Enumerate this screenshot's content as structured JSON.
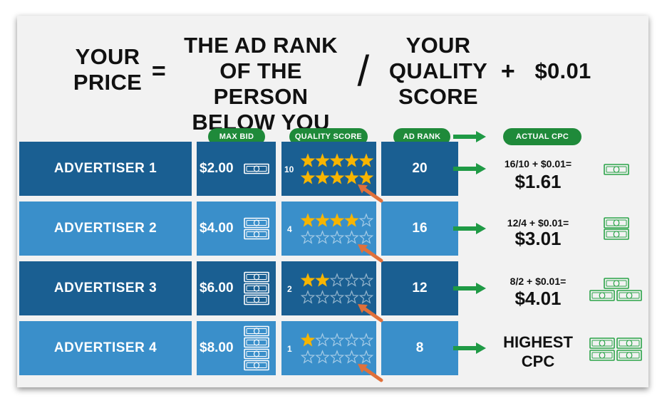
{
  "formula": {
    "price_line1": "YOUR",
    "price_line2": "PRICE",
    "equals": "=",
    "rank_line1": "THE AD RANK",
    "rank_line2": "OF THE PERSON",
    "rank_line3": "BELOW YOU",
    "divide": "/",
    "qs_line1": "YOUR",
    "qs_line2": "QUALITY",
    "qs_line3": "SCORE",
    "plus": "+",
    "cent": "$0.01"
  },
  "headers": {
    "max_bid": "MAX BID",
    "quality_score": "QUALITY SCORE",
    "ad_rank": "AD RANK",
    "actual_cpc": "ACTUAL CPC"
  },
  "rows": [
    {
      "name": "ADVERTISER 1",
      "bid": "$2.00",
      "bills": 1,
      "qs": "10",
      "qs_value": 10,
      "rank": "20",
      "cpc_formula": "16/10 + $0.01=",
      "cpc": "$1.61",
      "cpc_bills": 1
    },
    {
      "name": "ADVERTISER 2",
      "bid": "$4.00",
      "bills": 2,
      "qs": "4",
      "qs_value": 4,
      "rank": "16",
      "cpc_formula": "12/4 + $0.01=",
      "cpc": "$3.01",
      "cpc_bills": 2
    },
    {
      "name": "ADVERTISER 3",
      "bid": "$6.00",
      "bills": 3,
      "qs": "2",
      "qs_value": 2,
      "rank": "12",
      "cpc_formula": "8/2 + $0.01=",
      "cpc": "$4.01",
      "cpc_bills": 3
    },
    {
      "name": "ADVERTISER 4",
      "bid": "$8.00",
      "bills": 4,
      "qs": "1",
      "qs_value": 1,
      "rank": "8",
      "cpc_line1": "HIGHEST",
      "cpc_line2": "CPC",
      "cpc_bills": 4
    }
  ],
  "colors": {
    "row_dark": "#1a5f92",
    "row_light": "#3a8fca",
    "pill_green": "#1f8a3a",
    "arrow_green": "#1f9a45",
    "star_gold": "#f7b500",
    "pointer_orange": "#e0703a",
    "bill_green": "#2aa348"
  },
  "icons": {
    "bill": "dollar-bill-icon",
    "star": "star-icon",
    "arrow": "right-arrow-icon",
    "pointer": "pointer-arrow-icon"
  }
}
